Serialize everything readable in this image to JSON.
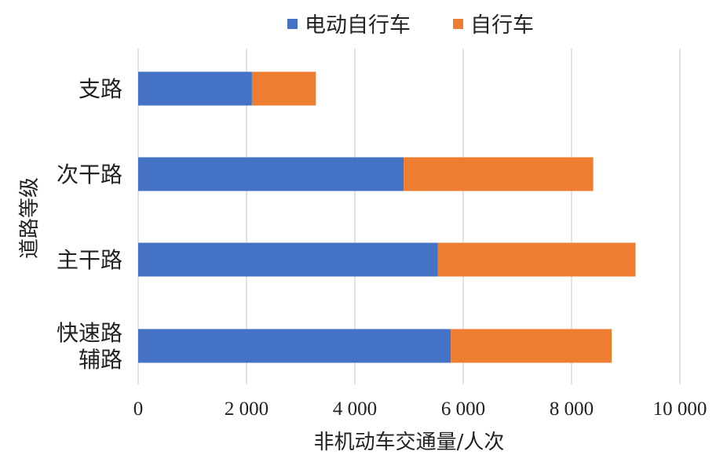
{
  "chart_data": {
    "type": "bar",
    "orientation": "horizontal",
    "stacked": true,
    "categories": [
      "支路",
      "次干路",
      "主干路",
      "快速路辅路"
    ],
    "category_lines": [
      [
        "支路"
      ],
      [
        "次干路"
      ],
      [
        "主干路"
      ],
      [
        "快速路",
        "辅路"
      ]
    ],
    "series": [
      {
        "name": "电动自行车",
        "color": "#4472C4",
        "values": [
          2100,
          4900,
          5530,
          5770
        ]
      },
      {
        "name": "自行车",
        "color": "#ED7D31",
        "values": [
          1180,
          3500,
          3650,
          2970
        ]
      }
    ],
    "xlabel": "非机动车交通量/人次",
    "ylabel": "道路等级",
    "xlim": [
      0,
      10000
    ],
    "xticks": [
      0,
      2000,
      4000,
      6000,
      8000,
      10000
    ],
    "xtick_labels": [
      "0",
      "2 000",
      "4 000",
      "6 000",
      "8 000",
      "10 000"
    ],
    "grid": "vertical",
    "legend": "top-center"
  }
}
